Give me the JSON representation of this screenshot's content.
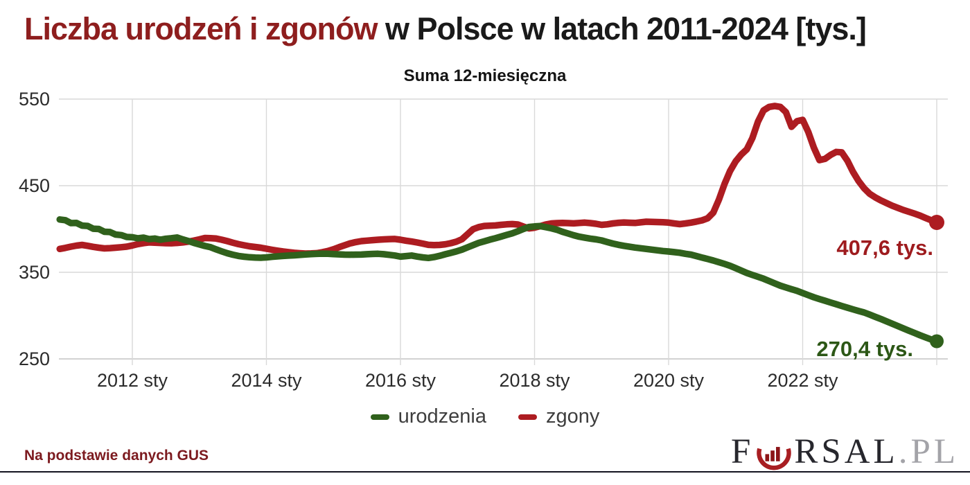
{
  "title": {
    "highlight": "Liczba urodzeń i zgonów",
    "rest": " w Polsce w latach 2011-2024 [tys.]",
    "highlight_color": "#8e1e1e",
    "rest_color": "#1a1a1a"
  },
  "subtitle": "Suma 12-miesięczna",
  "source_note": "Na podstawie danych GUS",
  "source_note_color": "#7c1a1f",
  "bottom_bar_color": "#12121e",
  "logo": {
    "prefix": "F",
    "middle": "RSAL",
    "suffix": ".PL",
    "letters_color": "#27272d",
    "suffix_color": "#a3a3a8",
    "icon": "forsal-bowl-chart-icon",
    "icon_bowl_color": "#a81e22",
    "icon_bars_color": "#8c1518"
  },
  "chart_data": {
    "type": "line",
    "title": "Liczba urodzeń i zgonów w Polsce w latach 2011-2024 [tys.]",
    "subtitle": "Suma 12-miesięczna",
    "x_start": "2010-12",
    "x_end": "2024-01",
    "x_step": "month",
    "x_tick_labels": [
      "2012 sty",
      "2014 sty",
      "2016 sty",
      "2018 sty",
      "2020 sty",
      "2022 sty"
    ],
    "y_ticks": [
      550,
      450,
      350,
      250
    ],
    "ylim": [
      250,
      557
    ],
    "grid": true,
    "axis_text_color": "#2b2b2b",
    "grid_color": "#d9d9d9",
    "axis_line_color": "#c4c4c4",
    "legend_position": "bottom",
    "legend": [
      {
        "label": "urodzenia",
        "color": "#30611c"
      },
      {
        "label": "zgony",
        "color": "#ad1c21"
      }
    ],
    "series": [
      {
        "name": "zgony",
        "color": "#ad1c21",
        "dot_radius": 11,
        "values": [
          377.0,
          378.2,
          379.6,
          380.8,
          381.6,
          380.6,
          379.4,
          378.4,
          377.6,
          377.9,
          378.4,
          379.0,
          379.6,
          381.0,
          382.6,
          383.7,
          384.5,
          384.2,
          383.9,
          383.6,
          383.5,
          383.9,
          384.5,
          385.4,
          386.6,
          388.0,
          389.6,
          389.4,
          389.0,
          387.6,
          386.0,
          384.2,
          382.5,
          381.2,
          380.0,
          379.2,
          378.4,
          377.2,
          376.0,
          375.0,
          374.0,
          373.2,
          372.5,
          372.0,
          371.6,
          371.8,
          372.1,
          373.2,
          374.6,
          376.6,
          379.0,
          381.2,
          383.4,
          384.9,
          386.0,
          386.6,
          387.1,
          387.6,
          388.0,
          388.3,
          388.5,
          387.6,
          386.5,
          385.5,
          384.4,
          383.1,
          381.7,
          381.4,
          381.6,
          382.3,
          383.6,
          385.4,
          388.2,
          394.0,
          399.8,
          402.2,
          403.5,
          403.8,
          404.1,
          404.8,
          405.4,
          405.7,
          405.2,
          402.8,
          400.7,
          401.5,
          403.3,
          405.2,
          406.4,
          406.8,
          407.0,
          406.8,
          406.5,
          407.0,
          407.4,
          406.8,
          406.0,
          404.8,
          405.4,
          406.4,
          407.1,
          407.5,
          407.2,
          407.0,
          407.7,
          408.4,
          408.2,
          408.0,
          407.8,
          407.4,
          406.4,
          405.6,
          406.4,
          407.4,
          408.6,
          410.0,
          412.4,
          418.9,
          433.9,
          451.8,
          467.0,
          478.1,
          485.9,
          492.0,
          505.0,
          524.0,
          537.0,
          541.0,
          542.0,
          541.0,
          535.0,
          518.0,
          524.5,
          526.0,
          512.0,
          494.0,
          479.5,
          481.0,
          485.5,
          489.0,
          488.5,
          479.0,
          466.0,
          455.5,
          447.0,
          440.6,
          436.5,
          433.0,
          429.9,
          427.0,
          424.5,
          422.0,
          419.9,
          417.8,
          415.5,
          412.7,
          410.1,
          407.6
        ]
      },
      {
        "name": "urodzenia",
        "color": "#30611c",
        "dot_radius": 10,
        "values": [
          411.0,
          410.2,
          406.8,
          407.0,
          403.9,
          403.5,
          400.3,
          400.0,
          396.8,
          396.5,
          393.6,
          393.0,
          390.8,
          390.5,
          389.2,
          390.0,
          388.3,
          389.0,
          387.6,
          388.7,
          389.4,
          390.2,
          388.0,
          386.2,
          384.0,
          382.2,
          380.4,
          379.0,
          376.5,
          374.2,
          372.0,
          370.3,
          368.9,
          368.0,
          367.4,
          367.0,
          366.8,
          367.2,
          367.9,
          368.4,
          368.9,
          369.3,
          369.6,
          370.1,
          370.6,
          371.0,
          371.3,
          371.5,
          371.4,
          371.0,
          370.7,
          370.4,
          370.3,
          370.4,
          370.5,
          370.9,
          371.2,
          371.4,
          370.9,
          370.2,
          369.4,
          368.1,
          368.7,
          369.4,
          368.2,
          367.2,
          366.6,
          367.5,
          369.0,
          370.8,
          372.4,
          374.1,
          376.2,
          378.8,
          381.4,
          383.9,
          385.8,
          387.7,
          389.4,
          391.2,
          393.1,
          395.0,
          397.4,
          400.0,
          402.3,
          403.0,
          403.4,
          402.2,
          400.8,
          399.1,
          396.7,
          394.8,
          392.8,
          391.1,
          389.9,
          388.9,
          388.0,
          386.8,
          385.0,
          383.2,
          381.8,
          380.6,
          379.5,
          378.6,
          377.8,
          377.0,
          376.2,
          375.4,
          374.6,
          374.0,
          373.3,
          372.6,
          371.4,
          370.4,
          368.7,
          367.0,
          365.4,
          363.6,
          361.7,
          359.7,
          357.5,
          354.8,
          352.0,
          349.2,
          347.0,
          344.8,
          342.6,
          339.9,
          337.2,
          334.6,
          332.5,
          330.5,
          328.6,
          326.1,
          323.6,
          321.2,
          319.1,
          317.1,
          315.1,
          313.1,
          311.1,
          309.1,
          307.2,
          305.4,
          303.6,
          301.1,
          298.6,
          296.1,
          293.4,
          290.7,
          288.0,
          285.3,
          282.6,
          280.0,
          277.4,
          274.9,
          272.5,
          270.4
        ]
      }
    ],
    "annotations": [
      {
        "text": "407,6 tys.",
        "color": "#9e1b1e",
        "x": 1347,
        "y": 368,
        "anchor": "end"
      },
      {
        "text": "270,4 tys.",
        "color": "#2c5716",
        "x": 1318,
        "y": 514,
        "anchor": "end"
      }
    ]
  }
}
